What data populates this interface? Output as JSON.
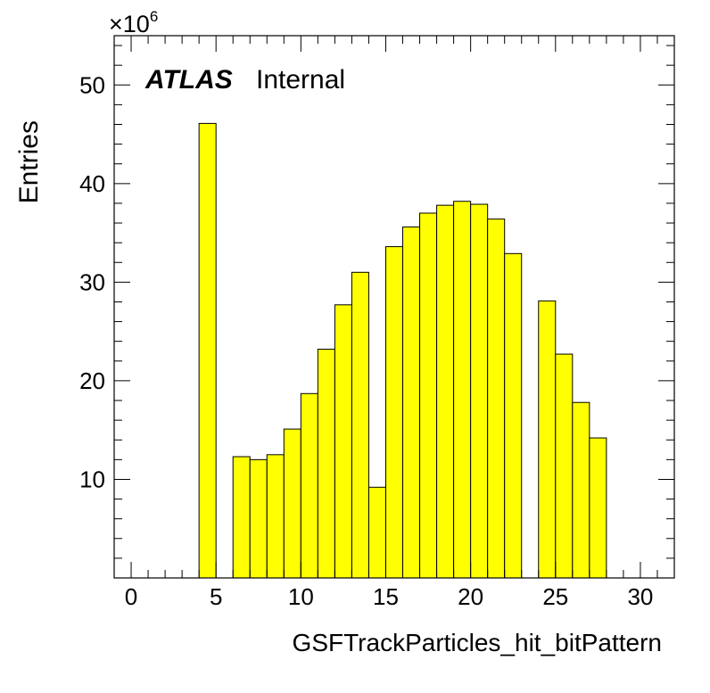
{
  "chart_data": {
    "type": "bar",
    "style": "histogram",
    "xlabel": "GSFTrackParticles_hit_bitPattern",
    "ylabel": "Entries",
    "y_multiplier_label": "×10",
    "y_multiplier_exponent": "6",
    "label_bold": "ATLAS",
    "label_normal": "Internal",
    "xlim": [
      -1,
      32
    ],
    "ylim": [
      0,
      55
    ],
    "x_ticks": [
      0,
      5,
      10,
      15,
      20,
      25,
      30
    ],
    "y_ticks": [
      10,
      20,
      30,
      40,
      50
    ],
    "bin_width": 1,
    "bin_edges_start": -1,
    "values": [
      0,
      0,
      0,
      0,
      0,
      46.1,
      0,
      12.3,
      12.0,
      12.5,
      15.1,
      18.7,
      23.2,
      27.7,
      31.0,
      9.2,
      33.6,
      35.6,
      37.0,
      37.8,
      38.2,
      37.9,
      36.4,
      32.9,
      0,
      28.1,
      22.7,
      17.8,
      14.2,
      0,
      0,
      0,
      0
    ],
    "fill_color": "#ffff00",
    "line_color": "#000000",
    "grid": false,
    "legend": "none"
  }
}
